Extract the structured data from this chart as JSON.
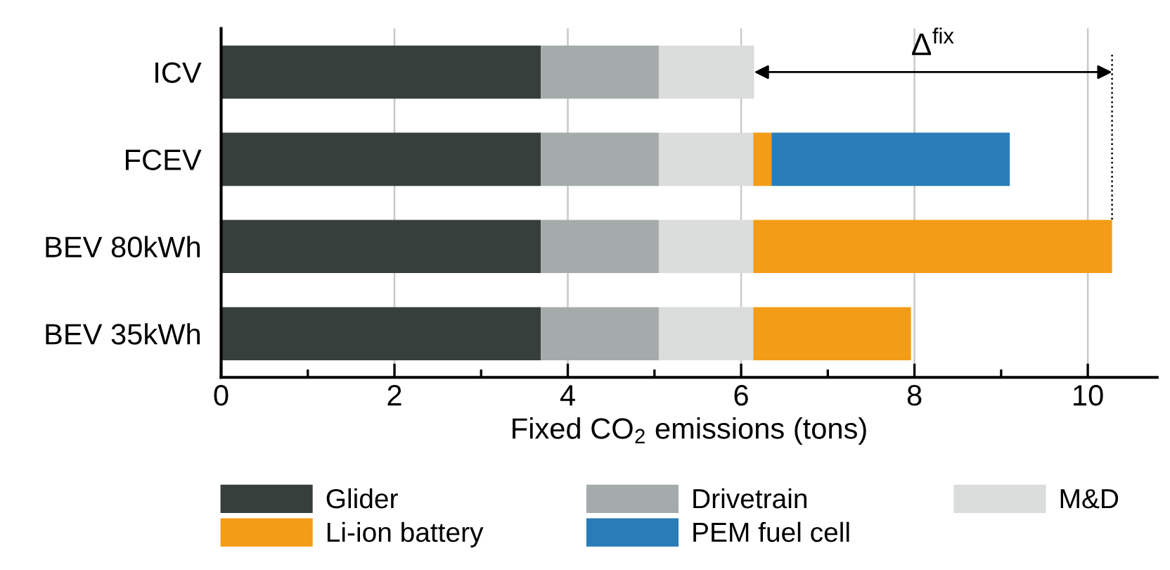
{
  "chart_data": {
    "type": "bar",
    "orientation": "horizontal",
    "stacked": true,
    "categories": [
      "ICV",
      "FCEV",
      "BEV 80kWh",
      "BEV 35kWh"
    ],
    "series": [
      {
        "name": "Glider",
        "color": "#373f3d",
        "values": [
          3.69,
          3.69,
          3.69,
          3.69
        ]
      },
      {
        "name": "Drivetrain",
        "color": "#a5abab",
        "values": [
          1.36,
          1.36,
          1.36,
          1.36
        ]
      },
      {
        "name": "M&D",
        "color": "#dadddc",
        "values": [
          1.1,
          1.09,
          1.09,
          1.09
        ]
      },
      {
        "name": "Li-ion battery",
        "color": "#f39c17",
        "values": [
          null,
          0.21,
          4.14,
          1.82
        ]
      },
      {
        "name": "PEM fuel cell",
        "color": "#2b7db9",
        "values": [
          null,
          2.75,
          null,
          null
        ]
      }
    ],
    "xlabel": "Fixed CO$_{2}$ emissions (tons)",
    "xlim": [
      0,
      10.8
    ],
    "xticks": [
      0,
      {
        "value": 1,
        "label": null
      },
      2,
      {
        "value": 3,
        "label": null
      },
      4,
      {
        "value": 5,
        "label": null
      },
      6,
      {
        "value": 7,
        "label": null
      },
      8,
      {
        "value": 9,
        "label": null
      },
      10
    ],
    "grid": "x",
    "legend": "bottom",
    "annotations": [
      "Δ$^{fix}$"
    ]
  }
}
